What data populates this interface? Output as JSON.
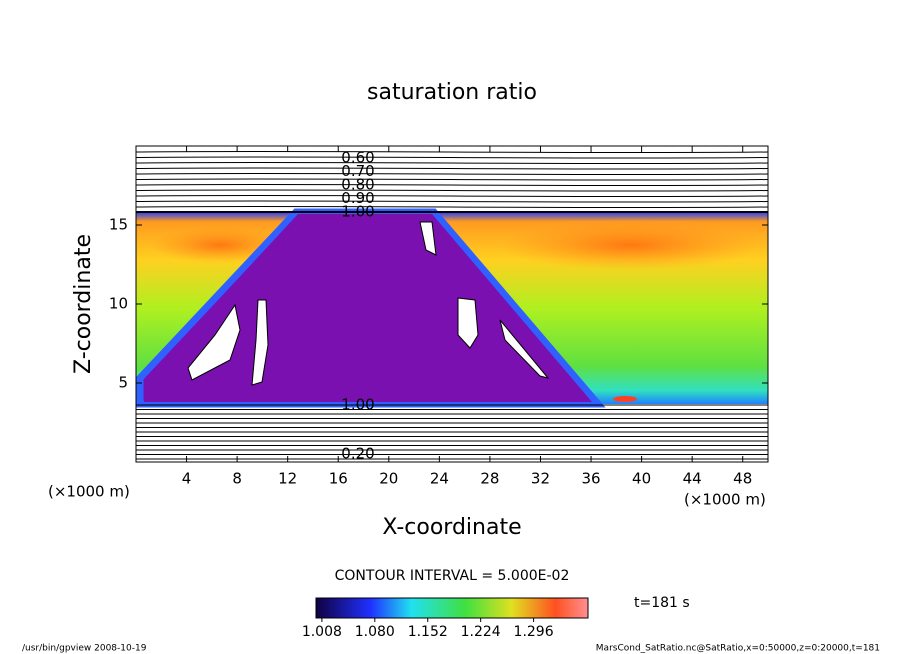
{
  "chart_data": {
    "type": "contour",
    "title": "saturation ratio",
    "x_label": "X-coordinate",
    "y_label": "Z-coordinate",
    "x_unit": "(×1000 m)",
    "y_unit": "(×1000 m)",
    "xlim": [
      0,
      50
    ],
    "xticks": [
      4,
      8,
      12,
      16,
      20,
      24,
      28,
      32,
      36,
      40,
      44,
      48
    ],
    "ylim": [
      0,
      20
    ],
    "yticks": [
      5,
      10,
      15
    ],
    "upper_contour_labels": [
      {
        "value": 0.6,
        "label": "0.60"
      },
      {
        "value": 0.7,
        "label": "0.70"
      },
      {
        "value": 0.8,
        "label": "0.80"
      },
      {
        "value": 0.9,
        "label": "0.90"
      },
      {
        "value": 1.0,
        "label": "1.00"
      }
    ],
    "lower_contour_labels": [
      {
        "value": 1.0,
        "label": "1.00"
      },
      {
        "value": 0.2,
        "label": "0.20"
      }
    ],
    "contour_interval": "CONTOUR INTERVAL = 5.000E-02",
    "colorbar_lim": [
      1.0,
      1.37
    ],
    "colorbar_ticks": [
      1.008,
      {
        "value": 1.08,
        "label": "1.080"
      },
      1.152,
      1.224,
      1.296
    ],
    "time_label": "t=181 s",
    "footer_left": "/usr/bin/gpview   2008-10-19",
    "footer_right": "MarsCond_SatRatio.nc@SatRatio,x=0:50000,z=0:20000,t=181"
  }
}
